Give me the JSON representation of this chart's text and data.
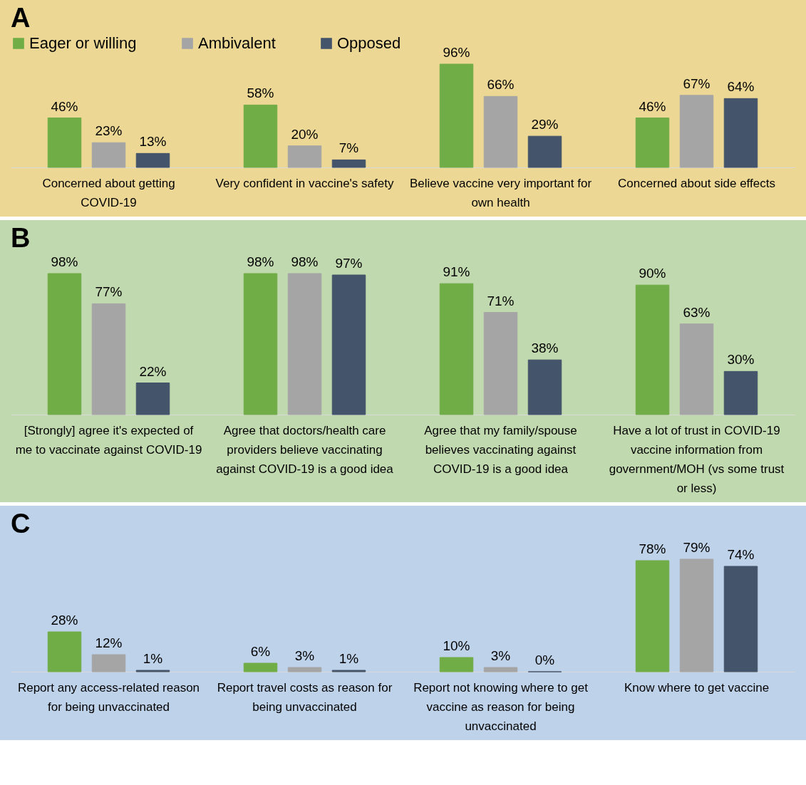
{
  "chart_data": [
    {
      "type": "bar",
      "title": "A",
      "legend": "top",
      "categories": [
        "Concerned about getting COVID-19",
        "Very confident in vaccine's safety",
        "Believe vaccine very important for own health",
        "Concerned about side effects"
      ],
      "series": [
        {
          "name": "Eager or willing",
          "color": "#70ad47",
          "values": [
            46,
            58,
            96,
            46
          ],
          "value_labels": [
            "46%",
            "58%",
            "96%",
            "46%"
          ]
        },
        {
          "name": "Ambivalent",
          "color": "#a5a5a5",
          "values": [
            23,
            20,
            66,
            67
          ],
          "value_labels": [
            "23%",
            "20%",
            "66%",
            "67%"
          ]
        },
        {
          "name": "Opposed",
          "color": "#44546a",
          "values": [
            13,
            7,
            29,
            64
          ],
          "value_labels": [
            "13%",
            "7%",
            "29%",
            "64%"
          ]
        }
      ]
    },
    {
      "type": "bar",
      "title": "B",
      "categories": [
        "[Strongly] agree it's expected of me to vaccinate against COVID-19",
        "Agree that doctors/health care providers believe vaccinating against COVID-19 is a good idea",
        "Agree that my family/spouse believes vaccinating against COVID-19 is a good idea",
        "Have a lot of trust in COVID-19 vaccine information from government/MOH (vs some trust or less)"
      ],
      "series": [
        {
          "color": "#70ad47",
          "values": [
            98,
            98,
            91,
            90
          ],
          "value_labels": [
            "98%",
            "98%",
            "91%",
            "90%"
          ]
        },
        {
          "color": "#a5a5a5",
          "values": [
            77,
            98,
            71,
            63
          ],
          "value_labels": [
            "77%",
            "98%",
            "71%",
            "63%"
          ]
        },
        {
          "color": "#44546a",
          "values": [
            22,
            97,
            38,
            30
          ],
          "value_labels": [
            "22%",
            "97%",
            "38%",
            "30%"
          ]
        }
      ]
    },
    {
      "type": "bar",
      "title": "C",
      "categories": [
        "Report any access-related reason for being unvaccinated",
        "Report travel costs as reason for being unvaccinated",
        "Report not knowing where to get vaccine as reason for being unvaccinated",
        "Know where to get vaccine"
      ],
      "series": [
        {
          "color": "#70ad47",
          "values": [
            28,
            6,
            10,
            78
          ],
          "value_labels": [
            "28%",
            "6%",
            "10%",
            "78%"
          ]
        },
        {
          "color": "#a5a5a5",
          "values": [
            12,
            3,
            3,
            79
          ],
          "value_labels": [
            "12%",
            "3%",
            "3%",
            "79%"
          ]
        },
        {
          "color": "#44546a",
          "values": [
            1,
            1,
            0,
            74
          ],
          "value_labels": [
            "1%",
            "1%",
            "0%",
            "74%"
          ]
        }
      ]
    }
  ]
}
